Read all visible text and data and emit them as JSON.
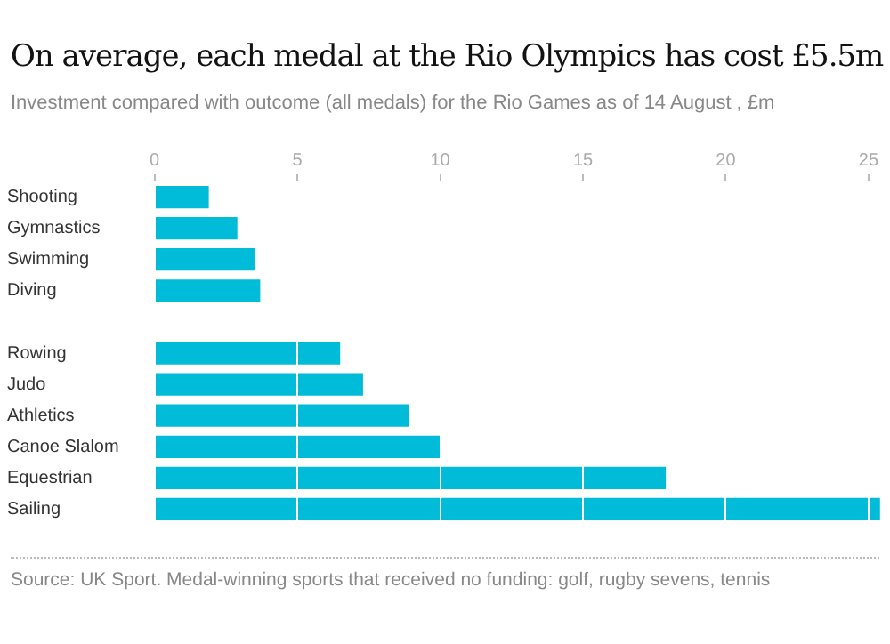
{
  "chart_data": {
    "type": "bar",
    "orientation": "horizontal",
    "title": "On average, each medal at the Rio Olympics has cost £5.5m",
    "subtitle": "Investment compared with outcome (all medals) for the Rio Games as of 14 August , £m",
    "categories": [
      "Shooting",
      "Gymnastics",
      "Swimming",
      "Diving",
      null,
      "Rowing",
      "Judo",
      "Athletics",
      "Canoe Slalom",
      "Equestrian",
      "Sailing"
    ],
    "values": [
      1.9,
      2.9,
      3.5,
      3.7,
      null,
      6.5,
      7.3,
      8.9,
      10.0,
      17.9,
      25.4
    ],
    "color": "#00bcd8",
    "xlim": [
      0,
      25.5
    ],
    "xticks": [
      0,
      5,
      10,
      15,
      20,
      25
    ],
    "grid": "x",
    "annotations": [
      "Source: UK Sport. Medal-winning sports that received no funding: golf, rugby sevens, tennis"
    ]
  }
}
